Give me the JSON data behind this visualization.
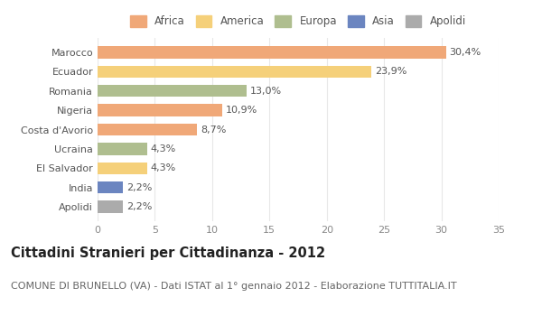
{
  "categories": [
    "Marocco",
    "Ecuador",
    "Romania",
    "Nigeria",
    "Costa d'Avorio",
    "Ucraina",
    "El Salvador",
    "India",
    "Apolidi"
  ],
  "values": [
    30.4,
    23.9,
    13.0,
    10.9,
    8.7,
    4.3,
    4.3,
    2.2,
    2.2
  ],
  "labels": [
    "30,4%",
    "23,9%",
    "13,0%",
    "10,9%",
    "8,7%",
    "4,3%",
    "4,3%",
    "2,2%",
    "2,2%"
  ],
  "bar_colors": [
    "#F0A878",
    "#F5D07A",
    "#AFBE8F",
    "#F0A878",
    "#F0A878",
    "#AFBE8F",
    "#F5D07A",
    "#6B85C0",
    "#ABABAB"
  ],
  "legend_labels": [
    "Africa",
    "America",
    "Europa",
    "Asia",
    "Apolidi"
  ],
  "legend_colors": [
    "#F0A878",
    "#F5D07A",
    "#AFBE8F",
    "#6B85C0",
    "#ABABAB"
  ],
  "title": "Cittadini Stranieri per Cittadinanza - 2012",
  "subtitle": "COMUNE DI BRUNELLO (VA) - Dati ISTAT al 1° gennaio 2012 - Elaborazione TUTTITALIA.IT",
  "xlim": [
    0,
    35
  ],
  "xticks": [
    0,
    5,
    10,
    15,
    20,
    25,
    30,
    35
  ],
  "background_color": "#FFFFFF",
  "grid_color": "#E8E8E8",
  "bar_height": 0.62,
  "title_fontsize": 10.5,
  "subtitle_fontsize": 8,
  "label_fontsize": 8,
  "tick_fontsize": 8,
  "legend_fontsize": 8.5
}
